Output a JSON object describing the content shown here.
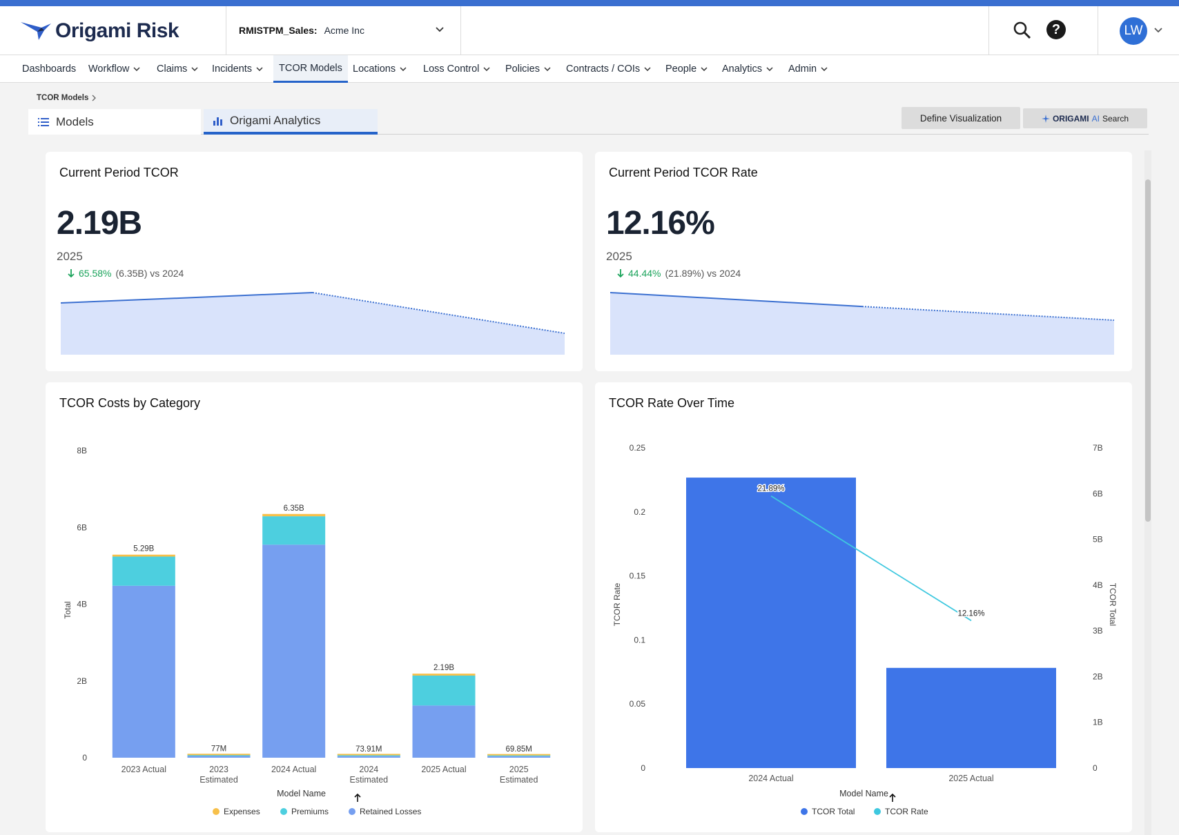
{
  "app": {
    "logo_text": "Origami Risk",
    "org_label": "RMISTPM_Sales:",
    "org_value": "Acme Inc",
    "avatar_initials": "LW",
    "accent": "#3a6fd0"
  },
  "nav": {
    "items": [
      {
        "label": "Dashboards",
        "dropdown": false
      },
      {
        "label": "Workflow",
        "dropdown": true
      },
      {
        "label": "Claims",
        "dropdown": true
      },
      {
        "label": "Incidents",
        "dropdown": true
      },
      {
        "label": "TCOR Models",
        "dropdown": false,
        "active": true
      },
      {
        "label": "Locations",
        "dropdown": true
      },
      {
        "label": "Loss Control",
        "dropdown": true
      },
      {
        "label": "Policies",
        "dropdown": true
      },
      {
        "label": "Contracts / COIs",
        "dropdown": true
      },
      {
        "label": "People",
        "dropdown": true
      },
      {
        "label": "Analytics",
        "dropdown": true
      },
      {
        "label": "Admin",
        "dropdown": true
      }
    ]
  },
  "breadcrumb": "TCOR Models",
  "tabs": {
    "models": "Models",
    "analytics": "Origami Analytics"
  },
  "buttons": {
    "define": "Define Visualization",
    "ai_brand": "ORIGAMI",
    "ai_tag": "AI",
    "ai_search": "Search"
  },
  "kpi_tcor": {
    "title": "Current Period TCOR",
    "value": "2.19B",
    "year": "2025",
    "delta_pct": "65.58%",
    "delta_rest": "(6.35B) vs 2024",
    "trend": [
      5.29,
      6.35,
      2.19
    ]
  },
  "kpi_rate": {
    "title": "Current Period TCOR Rate",
    "value": "12.16%",
    "year": "2025",
    "delta_pct": "44.44%",
    "delta_rest": "(21.89%) vs 2024",
    "trend": [
      0.2189,
      0.17,
      0.1216
    ]
  },
  "chart_data": [
    {
      "type": "bar",
      "title": "TCOR Costs by Category",
      "xlabel": "Model Name",
      "ylabel": "Total",
      "ylim": [
        0,
        8
      ],
      "yticks": [
        "0",
        "2B",
        "4B",
        "6B",
        "8B"
      ],
      "categories": [
        "2023 Actual",
        "2023 Estimated",
        "2024 Actual",
        "2024 Estimated",
        "2025 Actual",
        "2025 Estimated"
      ],
      "series": [
        {
          "name": "Retained Losses",
          "color": "#769ff0",
          "values": [
            4.48,
            0.045,
            5.55,
            0.042,
            1.36,
            0.04
          ]
        },
        {
          "name": "Premiums",
          "color": "#4dcfdf",
          "values": [
            0.76,
            0.022,
            0.74,
            0.022,
            0.78,
            0.02
          ]
        },
        {
          "name": "Expenses",
          "color": "#f7c04a",
          "values": [
            0.05,
            0.01,
            0.06,
            0.01,
            0.05,
            0.01
          ]
        }
      ],
      "totals": [
        "5.29B",
        "77M",
        "6.35B",
        "73.91M",
        "2.19B",
        "69.85M"
      ],
      "legend_position": "bottom"
    },
    {
      "type": "bar",
      "title": "TCOR Rate Over Time",
      "xlabel": "Model Name",
      "ylabel": "TCOR Rate",
      "y2label": "TCOR Total",
      "ylim": [
        0,
        0.25
      ],
      "yticks": [
        "0",
        "0.05",
        "0.1",
        "0.15",
        "0.2",
        "0.25"
      ],
      "y2lim": [
        0,
        7
      ],
      "y2ticks": [
        "0",
        "1B",
        "2B",
        "3B",
        "4B",
        "5B",
        "6B",
        "7B"
      ],
      "categories": [
        "2024 Actual",
        "2025 Actual"
      ],
      "series": [
        {
          "name": "TCOR Total",
          "color": "#3e75e8",
          "values": [
            6.35,
            2.19
          ],
          "axis": "right",
          "kind": "bar"
        },
        {
          "name": "TCOR Rate",
          "color": "#3ec8df",
          "values": [
            0.2189,
            0.1216
          ],
          "axis": "left",
          "kind": "line",
          "labels": [
            "21.89%",
            "12.16%"
          ]
        }
      ],
      "legend_position": "bottom"
    }
  ]
}
